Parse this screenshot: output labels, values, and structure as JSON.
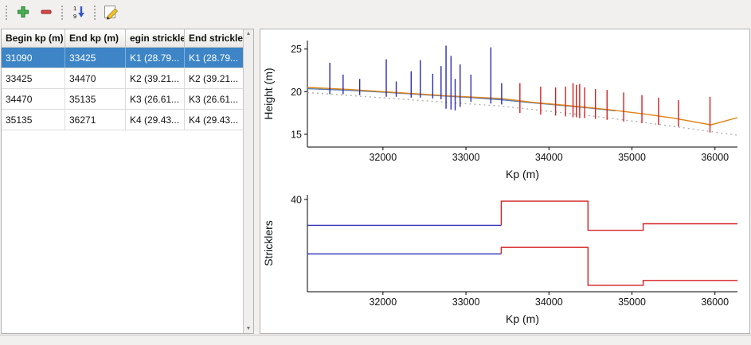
{
  "window": {
    "background": "#f1f0ef"
  },
  "toolbar": {
    "buttons": [
      {
        "name": "add-row",
        "icon": "plus-icon",
        "color": "#4caf50"
      },
      {
        "name": "remove-row",
        "icon": "minus-icon",
        "color": "#d84a4a"
      },
      {
        "name": "sort-numeric-ascending",
        "icon": "sort-numeric-ascending-icon",
        "color": "#3355cc"
      },
      {
        "name": "edit-stricklers",
        "icon": "pencil-edit-icon",
        "color": "#f2c12e"
      }
    ]
  },
  "table": {
    "columns": [
      "Begin kp (m)",
      "End kp (m)",
      "egin strickle",
      "End strickler"
    ],
    "rows": [
      [
        "31090",
        "33425",
        "K1 (28.79...",
        "K1 (28.79..."
      ],
      [
        "33425",
        "34470",
        "K2 (39.21...",
        "K2 (39.21..."
      ],
      [
        "34470",
        "35135",
        "K3 (26.61...",
        "K3 (26.61..."
      ],
      [
        "35135",
        "36271",
        "K4 (29.43...",
        "K4 (29.43..."
      ]
    ],
    "selected_row": 0,
    "selection_color": "#3d85c6"
  },
  "chart_data": [
    {
      "type": "line",
      "name": "height-profile-chart",
      "title": "",
      "xlabel": "Kp (m)",
      "ylabel": "Height (m)",
      "xlim": [
        31090,
        36271
      ],
      "ylim": [
        13.5,
        26
      ],
      "xticks": [
        32000,
        33000,
        34000,
        35000,
        36000
      ],
      "yticks": [
        15,
        20,
        25
      ],
      "grid": false,
      "legend": "none",
      "series": [
        {
          "name": "bed-line-blue",
          "color": "#4f81bd",
          "dash": "",
          "points": [
            [
              31090,
              20.35
            ],
            [
              31600,
              20.15
            ],
            [
              32000,
              19.95
            ],
            [
              32400,
              19.7
            ],
            [
              32800,
              19.45
            ],
            [
              33000,
              19.35
            ],
            [
              33425,
              19.05
            ],
            [
              33800,
              18.7
            ],
            [
              34200,
              18.35
            ],
            [
              34470,
              18.1
            ],
            [
              34800,
              17.75
            ]
          ]
        },
        {
          "name": "bed-line-orange",
          "color": "#e08214",
          "dash": "",
          "points": [
            [
              31090,
              20.5
            ],
            [
              31600,
              20.25
            ],
            [
              32000,
              20.0
            ],
            [
              32400,
              19.75
            ],
            [
              32800,
              19.5
            ],
            [
              33425,
              19.2
            ],
            [
              33800,
              18.75
            ],
            [
              34200,
              18.4
            ],
            [
              34470,
              18.15
            ],
            [
              34800,
              17.8
            ],
            [
              35135,
              17.4
            ],
            [
              35500,
              16.9
            ],
            [
              35950,
              16.1
            ],
            [
              36271,
              16.95
            ]
          ]
        },
        {
          "name": "reference-line-dotted",
          "color": "#b0b0b0",
          "dash": "2,4",
          "points": [
            [
              31090,
              19.9
            ],
            [
              33425,
              18.3
            ],
            [
              34470,
              17.2
            ],
            [
              35135,
              16.4
            ],
            [
              36271,
              14.9
            ]
          ]
        }
      ],
      "spikes": [
        {
          "name": "section-markers-blue",
          "color": "#2a2ab4",
          "items": [
            [
              31360,
              19.7,
              23.4
            ],
            [
              31520,
              19.7,
              22.0
            ],
            [
              31720,
              19.6,
              21.5
            ],
            [
              32040,
              19.4,
              23.8
            ],
            [
              32160,
              19.4,
              21.2
            ],
            [
              32340,
              19.3,
              22.4
            ],
            [
              32450,
              19.3,
              23.7
            ],
            [
              32600,
              19.2,
              22.1
            ],
            [
              32700,
              19.1,
              23.0
            ],
            [
              32760,
              18.0,
              25.4
            ],
            [
              32820,
              17.9,
              24.2
            ],
            [
              32870,
              17.8,
              21.5
            ],
            [
              32930,
              18.2,
              23.2
            ],
            [
              33060,
              18.8,
              22.0
            ],
            [
              33300,
              18.6,
              25.2
            ],
            [
              33430,
              18.5,
              21.0
            ]
          ]
        },
        {
          "name": "section-markers-red",
          "color": "#d42020",
          "items": [
            [
              33650,
              17.5,
              21.0
            ],
            [
              33900,
              17.3,
              20.6
            ],
            [
              34080,
              17.2,
              20.5
            ],
            [
              34200,
              17.1,
              20.6
            ],
            [
              34290,
              17.0,
              21.0
            ],
            [
              34330,
              17.0,
              20.8
            ],
            [
              34370,
              16.9,
              20.9
            ],
            [
              34430,
              16.9,
              20.5
            ],
            [
              34560,
              16.8,
              20.3
            ],
            [
              34700,
              16.7,
              20.2
            ],
            [
              34900,
              16.5,
              19.9
            ],
            [
              35120,
              16.3,
              19.6
            ],
            [
              35320,
              16.1,
              19.3
            ],
            [
              35560,
              15.9,
              19.0
            ],
            [
              35940,
              15.2,
              19.4
            ]
          ]
        }
      ]
    },
    {
      "type": "step",
      "name": "stricklers-chart",
      "title": "",
      "xlabel": "Kp (m)",
      "ylabel": "Stricklers",
      "xlim": [
        31090,
        36271
      ],
      "ylim": [
        0,
        42
      ],
      "xticks": [
        32000,
        33000,
        34000,
        35000,
        36000
      ],
      "yticks": [
        40
      ],
      "grid": false,
      "legend": "none",
      "series": [
        {
          "name": "major-strickler-current-blue",
          "color": "#2a2ab4",
          "dash": "",
          "points": [
            [
              31090,
              28.79
            ],
            [
              33425,
              28.79
            ]
          ]
        },
        {
          "name": "major-strickler-red",
          "color": "#d42020",
          "dash": "",
          "points": [
            [
              33425,
              28.79
            ],
            [
              33425,
              39.21
            ],
            [
              34470,
              39.21
            ],
            [
              34470,
              26.61
            ],
            [
              35135,
              26.61
            ],
            [
              35135,
              29.43
            ],
            [
              36271,
              29.43
            ]
          ]
        },
        {
          "name": "minor-strickler-current-blue",
          "color": "#2a2ab4",
          "dash": "",
          "points": [
            [
              31090,
              16.4
            ],
            [
              33425,
              16.4
            ]
          ]
        },
        {
          "name": "minor-strickler-red",
          "color": "#d42020",
          "dash": "",
          "points": [
            [
              33425,
              16.4
            ],
            [
              33425,
              19.2
            ],
            [
              34470,
              19.2
            ],
            [
              34470,
              2.8
            ],
            [
              35135,
              2.8
            ],
            [
              35135,
              4.9
            ],
            [
              36271,
              4.9
            ]
          ]
        }
      ]
    }
  ]
}
